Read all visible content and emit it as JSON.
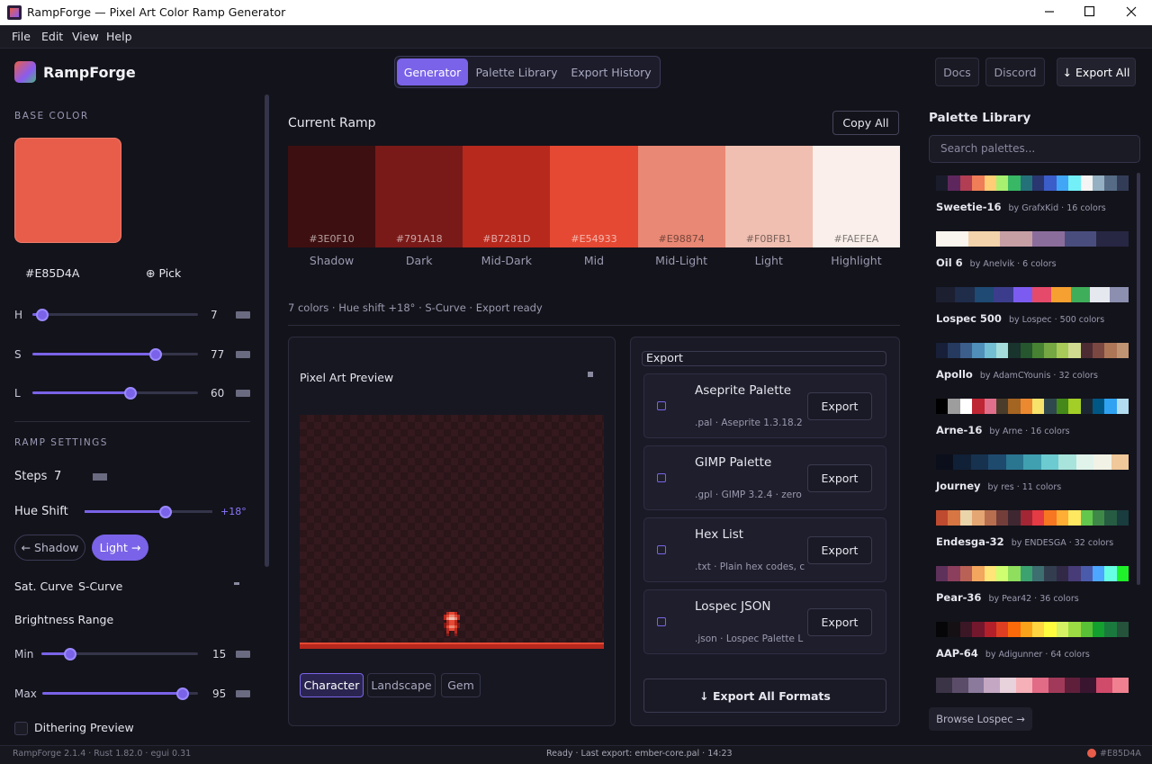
{
  "window": {
    "title": "RampForge — Pixel Art Color Ramp Generator"
  },
  "menu": [
    "File",
    "Edit",
    "View",
    "Help"
  ],
  "header": {
    "app_name": "RampForge",
    "tabs": [
      "Generator",
      "Palette Library",
      "Export History"
    ],
    "buttons": [
      "Docs",
      "Discord",
      "↓ Export All"
    ]
  },
  "base_color": {
    "heading": "BASE COLOR",
    "hex": "#E85D4A",
    "pick": "⊕ Pick",
    "sliders": [
      {
        "label": "H",
        "value": 7
      },
      {
        "label": "S",
        "value": 77
      },
      {
        "label": "L",
        "value": 60
      }
    ]
  },
  "ramp_settings": {
    "heading": "RAMP SETTINGS",
    "steps_label": "Steps",
    "steps": 7,
    "hue_shift_label": "Hue Shift",
    "hue_shift": "+18°",
    "direction_buttons": [
      "← Shadow",
      "Light →"
    ],
    "sat_curve_label": "Sat. Curve",
    "sat_curve": "S-Curve",
    "brightness_label": "Brightness Range",
    "brightness": [
      {
        "label": "Min",
        "value": 15
      },
      {
        "label": "Max",
        "value": 95
      }
    ],
    "dithering": "Dithering Preview"
  },
  "ramp": {
    "title": "Current Ramp",
    "copy": "Copy All",
    "swatches": [
      {
        "hex": "#3E0F10",
        "name": "Shadow"
      },
      {
        "hex": "#791A18",
        "name": "Dark"
      },
      {
        "hex": "#B7281D",
        "name": "Mid-Dark"
      },
      {
        "hex": "#E54933",
        "name": "Mid"
      },
      {
        "hex": "#E98874",
        "name": "Mid-Light"
      },
      {
        "hex": "#F0BFB1",
        "name": "Light"
      },
      {
        "hex": "#FAEFEA",
        "name": "Highlight"
      }
    ],
    "summary": "7 colors · Hue shift +18° · S-Curve · Export ready"
  },
  "preview": {
    "title": "Pixel Art Preview",
    "modes": [
      "Character",
      "Landscape",
      "Gem"
    ]
  },
  "export": {
    "title": "Export",
    "formats": [
      {
        "name": "Aseprite Palette",
        "detail": ".pal · Aseprite 1.3.18.2",
        "button": "Export"
      },
      {
        "name": "GIMP Palette",
        "detail": ".gpl · GIMP 3.2.4 · zero",
        "button": "Export"
      },
      {
        "name": "Hex List",
        "detail": ".txt · Plain hex codes, c",
        "button": "Export"
      },
      {
        "name": "Lospec JSON",
        "detail": ".json · Lospec Palette L",
        "button": "Export"
      }
    ],
    "export_all": "↓ Export All Formats"
  },
  "library": {
    "title": "Palette Library",
    "search_placeholder": "Search palettes...",
    "palettes": [
      {
        "name": "Sweetie-16",
        "meta": "by GrafxKid · 16 colors",
        "colors": [
          "#1a1c2c",
          "#5d275d",
          "#b13e53",
          "#ef7d57",
          "#ffcd75",
          "#a7f070",
          "#38b764",
          "#257179",
          "#29366f",
          "#3b5dc9",
          "#41a6f6",
          "#73eff7",
          "#f4f4f4",
          "#94b0c2",
          "#566c86",
          "#333c57"
        ]
      },
      {
        "name": "Oil 6",
        "meta": "by Anelvik · 6 colors",
        "colors": [
          "#fbf5ef",
          "#f2d3ab",
          "#c69fa5",
          "#8b6d9c",
          "#494d7e",
          "#272744"
        ]
      },
      {
        "name": "Lospec 500",
        "meta": "by Lospec · 500 colors",
        "colors": [
          "#1c1f30",
          "#1f2c4a",
          "#1e4a73",
          "#3b3d8c",
          "#7c5cf0",
          "#e64a6a",
          "#f5a030",
          "#3fae5a",
          "#e6e8f0",
          "#8c8fb0"
        ]
      },
      {
        "name": "Apollo",
        "meta": "by AdamCYounis · 32 colors",
        "colors": [
          "#172038",
          "#253a5e",
          "#3c5e8b",
          "#4f8fba",
          "#73bed3",
          "#a4dddb",
          "#19332d",
          "#25562e",
          "#468232",
          "#75a743",
          "#a8ca58",
          "#d0da91",
          "#4d2b32",
          "#7a4841",
          "#ad7757",
          "#c09473"
        ]
      },
      {
        "name": "Arne-16",
        "meta": "by Arne · 16 colors",
        "colors": [
          "#000000",
          "#9d9d9d",
          "#ffffff",
          "#be2633",
          "#e06f8b",
          "#493c2b",
          "#a46422",
          "#eb8931",
          "#f7e26b",
          "#2f484e",
          "#44891a",
          "#a3ce27",
          "#1b2632",
          "#005784",
          "#31a2f2",
          "#b2dcef"
        ]
      },
      {
        "name": "Journey",
        "meta": "by res · 11 colors",
        "colors": [
          "#0b0f1c",
          "#102036",
          "#17324f",
          "#1e4a6e",
          "#2a7590",
          "#40a0b0",
          "#6ccbd0",
          "#a8e4dc",
          "#e0f4ec",
          "#f2f2e6",
          "#f0c89a"
        ]
      },
      {
        "name": "Endesga-32",
        "meta": "by ENDESGA · 32 colors",
        "colors": [
          "#be4a2f",
          "#d77643",
          "#ead4aa",
          "#e4a672",
          "#b86f50",
          "#733e39",
          "#3e2731",
          "#a22633",
          "#e43b44",
          "#f77622",
          "#feae34",
          "#fee761",
          "#63c74d",
          "#3e8948",
          "#265c42",
          "#193c3e"
        ]
      },
      {
        "name": "Pear-36",
        "meta": "by Pear42 · 36 colors",
        "colors": [
          "#5e315b",
          "#8c3f5d",
          "#ba6156",
          "#f2a65e",
          "#ffe478",
          "#cfff70",
          "#8fde5d",
          "#3ca370",
          "#3d6e70",
          "#323e4f",
          "#322947",
          "#473b78",
          "#4b5bab",
          "#4da6ff",
          "#66ffe3",
          "#1ef02a"
        ]
      },
      {
        "name": "AAP-64",
        "meta": "by Adigunner · 64 colors",
        "colors": [
          "#060608",
          "#141013",
          "#3b1725",
          "#73172d",
          "#b4202a",
          "#df3e23",
          "#fa6a0a",
          "#f9a31b",
          "#ffd541",
          "#fffc40",
          "#d6f264",
          "#9cdb43",
          "#59c135",
          "#14a02e",
          "#1a7a3e",
          "#24523b"
        ]
      },
      {
        "name": null,
        "meta": null,
        "colors": [
          "#3b3346",
          "#5b4d69",
          "#8b7a9c",
          "#c4a7c2",
          "#e8d2dc",
          "#f6b0b8",
          "#e26b86",
          "#a13a5a",
          "#5f1f3a",
          "#3a1530",
          "#d04a6a",
          "#f08090"
        ]
      }
    ],
    "browse": "Browse Lospec →"
  },
  "status": {
    "version": "RampForge 2.1.4 · Rust 1.82.0 · egui 0.31",
    "message": "Ready · Last export: ember-core.pal · 14:23",
    "color": "#E85D4A"
  }
}
